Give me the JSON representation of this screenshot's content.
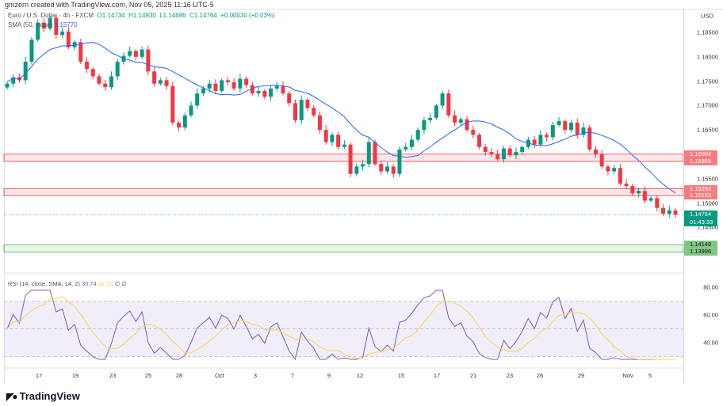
{
  "credit": "gmzern created with TradingView.com, Nov 05, 2025 11:16 UTC-5",
  "legend": {
    "symbol": "Euro / U.S. Dollar · 4h · FXCM",
    "o": "O1.14734",
    "h": "H1.14930",
    "l": "L1.14686",
    "c": "C1.14764",
    "chg": "+0.00030 (+0.03%)"
  },
  "sma": {
    "label": "SMA (50, close)",
    "value": "1.15770"
  },
  "rsi": {
    "label": "RSI (14, close, SMA, 14, 2)",
    "value": "30.74",
    "sma_value": "32.20",
    "extra": "∅ ∅",
    "ticks": [
      "80.00",
      "60.00",
      "40.00"
    ]
  },
  "currency": "USD",
  "price_ticks": [
    "1.18500",
    "1.18000",
    "1.17500",
    "1.17000",
    "1.16500",
    "1.15500",
    "1.15000",
    "1.14500"
  ],
  "zones": [
    {
      "top": "1.16004",
      "bottom": "1.15855",
      "color": "#f23645"
    },
    {
      "top": "1.15293",
      "bottom": "1.15153",
      "color": "#f23645"
    },
    {
      "top": "1.14148",
      "bottom": "1.13996",
      "color": "#4caf50"
    }
  ],
  "current": {
    "price": "1.14764",
    "countdown": "01:43:33",
    "color": "#089981"
  },
  "time_labels": [
    "17",
    "19",
    "23",
    "25",
    "28",
    "Oct",
    "3",
    "7",
    "9",
    "12",
    "15",
    "17",
    "21",
    "23",
    "26",
    "29",
    "Nov",
    "5"
  ],
  "chart_data": {
    "type": "candlestick",
    "series_name": "EUR/USD 4h (approx closes)",
    "closes": [
      1.1745,
      1.1758,
      1.1752,
      1.179,
      1.1835,
      1.187,
      1.1858,
      1.188,
      1.1845,
      1.1852,
      1.182,
      1.183,
      1.179,
      1.1775,
      1.176,
      1.1745,
      1.1738,
      1.176,
      1.179,
      1.1802,
      1.1812,
      1.18,
      1.1815,
      1.177,
      1.1745,
      1.1752,
      1.174,
      1.1665,
      1.1655,
      1.168,
      1.17,
      1.1725,
      1.1735,
      1.1745,
      1.173,
      1.1752,
      1.1748,
      1.1735,
      1.1755,
      1.1742,
      1.1725,
      1.173,
      1.1718,
      1.1735,
      1.174,
      1.1725,
      1.1705,
      1.167,
      1.1712,
      1.1695,
      1.168,
      1.165,
      1.1625,
      1.164,
      1.1615,
      1.162,
      1.156,
      1.1575,
      1.158,
      1.1625,
      1.158,
      1.1565,
      1.1575,
      1.156,
      1.161,
      1.1615,
      1.163,
      1.165,
      1.167,
      1.1675,
      1.17,
      1.1725,
      1.168,
      1.1665,
      1.1672,
      1.165,
      1.164,
      1.1615,
      1.1605,
      1.16,
      1.159,
      1.1612,
      1.1598,
      1.1605,
      1.1615,
      1.163,
      1.162,
      1.164,
      1.1635,
      1.166,
      1.1668,
      1.165,
      1.1665,
      1.164,
      1.1655,
      1.161,
      1.16,
      1.1575,
      1.1565,
      1.1572,
      1.154,
      1.1535,
      1.152,
      1.1525,
      1.1505,
      1.151,
      1.149,
      1.1478,
      1.1485,
      1.1476
    ],
    "up_color": "#089981",
    "down_color": "#f23645",
    "sma_color": "#2962ff",
    "rsi_color": "#7e57c2",
    "rsi_sma_color": "#f7d154"
  },
  "footer": {
    "brand": "TradingView"
  }
}
